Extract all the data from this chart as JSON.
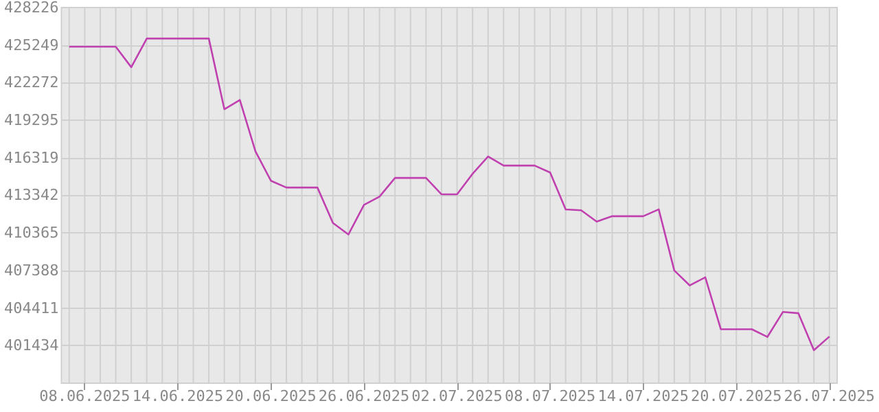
{
  "chart_data": {
    "type": "line",
    "grid": true,
    "marker": "none",
    "line_style": "solid",
    "x": [
      "2025-06-07",
      "2025-06-08",
      "2025-06-09",
      "2025-06-10",
      "2025-06-11",
      "2025-06-12",
      "2025-06-13",
      "2025-06-14",
      "2025-06-15",
      "2025-06-16",
      "2025-06-17",
      "2025-06-18",
      "2025-06-19",
      "2025-06-20",
      "2025-06-21",
      "2025-06-22",
      "2025-06-23",
      "2025-06-24",
      "2025-06-25",
      "2025-06-26",
      "2025-06-27",
      "2025-06-28",
      "2025-06-29",
      "2025-06-30",
      "2025-07-01",
      "2025-07-02",
      "2025-07-03",
      "2025-07-04",
      "2025-07-05",
      "2025-07-06",
      "2025-07-07",
      "2025-07-08",
      "2025-07-09",
      "2025-07-10",
      "2025-07-11",
      "2025-07-12",
      "2025-07-13",
      "2025-07-14",
      "2025-07-15",
      "2025-07-16",
      "2025-07-17",
      "2025-07-18",
      "2025-07-19",
      "2025-07-20",
      "2025-07-21",
      "2025-07-22",
      "2025-07-23",
      "2025-07-24",
      "2025-07-25",
      "2025-07-26"
    ],
    "series": [
      {
        "color": "#c040b0",
        "values": [
          425120,
          425120,
          425120,
          425120,
          423500,
          425770,
          425770,
          425770,
          425770,
          425770,
          420170,
          420900,
          416850,
          414500,
          413960,
          413960,
          413960,
          411150,
          410240,
          412590,
          413240,
          414720,
          414720,
          414720,
          413420,
          413420,
          415050,
          416420,
          415700,
          415700,
          415700,
          415150,
          412230,
          412160,
          411260,
          411690,
          411690,
          411690,
          412230,
          407390,
          406200,
          406850,
          402730,
          402730,
          402730,
          402120,
          404100,
          404000,
          401070,
          402150
        ]
      }
    ],
    "xlim": [
      "2025-06-06T12:00",
      "2025-07-26T12:00"
    ],
    "xticks": [
      {
        "value": "2025-06-07",
        "label": null
      },
      {
        "value": "2025-06-08",
        "label": "08.06.2025"
      },
      {
        "value": "2025-06-09",
        "label": null
      },
      {
        "value": "2025-06-10",
        "label": null
      },
      {
        "value": "2025-06-11",
        "label": null
      },
      {
        "value": "2025-06-12",
        "label": null
      },
      {
        "value": "2025-06-13",
        "label": null
      },
      {
        "value": "2025-06-14",
        "label": "14.06.2025"
      },
      {
        "value": "2025-06-15",
        "label": null
      },
      {
        "value": "2025-06-16",
        "label": null
      },
      {
        "value": "2025-06-17",
        "label": null
      },
      {
        "value": "2025-06-18",
        "label": null
      },
      {
        "value": "2025-06-19",
        "label": null
      },
      {
        "value": "2025-06-20",
        "label": "20.06.2025"
      },
      {
        "value": "2025-06-21",
        "label": null
      },
      {
        "value": "2025-06-22",
        "label": null
      },
      {
        "value": "2025-06-23",
        "label": null
      },
      {
        "value": "2025-06-24",
        "label": null
      },
      {
        "value": "2025-06-25",
        "label": null
      },
      {
        "value": "2025-06-26",
        "label": "26.06.2025"
      },
      {
        "value": "2025-06-27",
        "label": null
      },
      {
        "value": "2025-06-28",
        "label": null
      },
      {
        "value": "2025-06-29",
        "label": null
      },
      {
        "value": "2025-06-30",
        "label": null
      },
      {
        "value": "2025-07-01",
        "label": null
      },
      {
        "value": "2025-07-02",
        "label": "02.07.2025"
      },
      {
        "value": "2025-07-03",
        "label": null
      },
      {
        "value": "2025-07-04",
        "label": null
      },
      {
        "value": "2025-07-05",
        "label": null
      },
      {
        "value": "2025-07-06",
        "label": null
      },
      {
        "value": "2025-07-07",
        "label": null
      },
      {
        "value": "2025-07-08",
        "label": "08.07.2025"
      },
      {
        "value": "2025-07-09",
        "label": null
      },
      {
        "value": "2025-07-10",
        "label": null
      },
      {
        "value": "2025-07-11",
        "label": null
      },
      {
        "value": "2025-07-12",
        "label": null
      },
      {
        "value": "2025-07-13",
        "label": null
      },
      {
        "value": "2025-07-14",
        "label": "14.07.2025"
      },
      {
        "value": "2025-07-15",
        "label": null
      },
      {
        "value": "2025-07-16",
        "label": null
      },
      {
        "value": "2025-07-17",
        "label": null
      },
      {
        "value": "2025-07-18",
        "label": null
      },
      {
        "value": "2025-07-19",
        "label": null
      },
      {
        "value": "2025-07-20",
        "label": "20.07.2025"
      },
      {
        "value": "2025-07-21",
        "label": null
      },
      {
        "value": "2025-07-22",
        "label": null
      },
      {
        "value": "2025-07-23",
        "label": null
      },
      {
        "value": "2025-07-24",
        "label": null
      },
      {
        "value": "2025-07-25",
        "label": null
      },
      {
        "value": "2025-07-26",
        "label": "26.07.2025"
      }
    ],
    "ylim": [
      398457,
      428226
    ],
    "yticks": [
      401434,
      404411,
      407388,
      410365,
      413342,
      416319,
      419295,
      422272,
      425249,
      428226
    ]
  }
}
